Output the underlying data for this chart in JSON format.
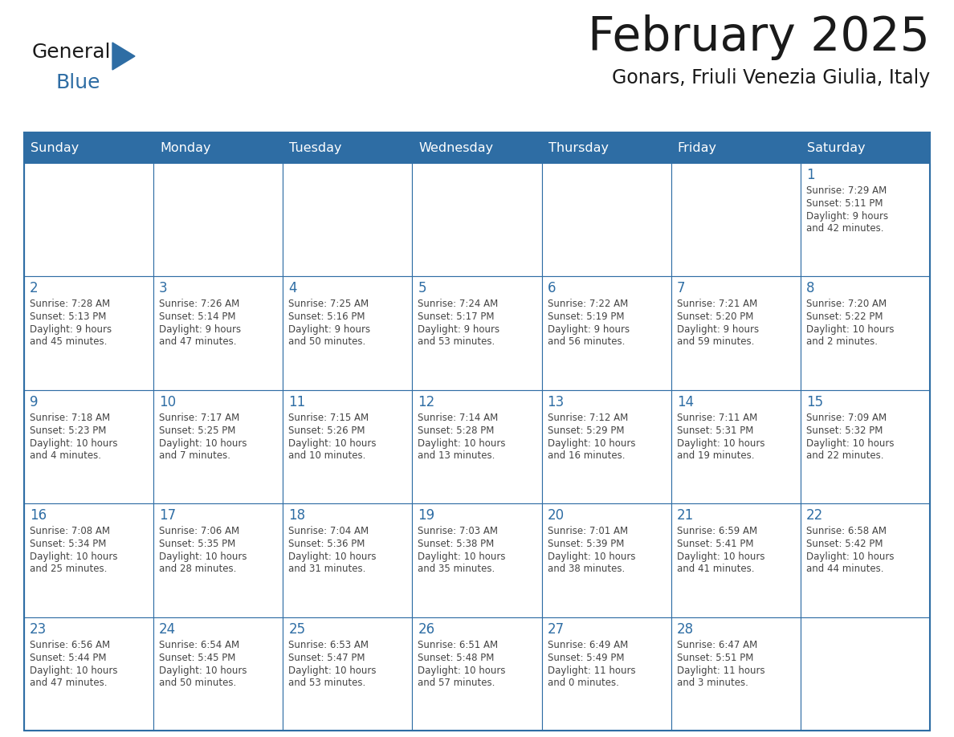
{
  "title": "February 2025",
  "subtitle": "Gonars, Friuli Venezia Giulia, Italy",
  "days_of_week": [
    "Sunday",
    "Monday",
    "Tuesday",
    "Wednesday",
    "Thursday",
    "Friday",
    "Saturday"
  ],
  "header_bg": "#2E6DA4",
  "header_fg": "#FFFFFF",
  "cell_bg": "#FFFFFF",
  "border_color": "#2E6DA4",
  "day_number_color": "#2E6DA4",
  "text_color": "#444444",
  "calendar_data": [
    [
      null,
      null,
      null,
      null,
      null,
      null,
      {
        "day": 1,
        "sunrise": "7:29 AM",
        "sunset": "5:11 PM",
        "daylight": "9 hours and 42 minutes."
      }
    ],
    [
      {
        "day": 2,
        "sunrise": "7:28 AM",
        "sunset": "5:13 PM",
        "daylight": "9 hours and 45 minutes."
      },
      {
        "day": 3,
        "sunrise": "7:26 AM",
        "sunset": "5:14 PM",
        "daylight": "9 hours and 47 minutes."
      },
      {
        "day": 4,
        "sunrise": "7:25 AM",
        "sunset": "5:16 PM",
        "daylight": "9 hours and 50 minutes."
      },
      {
        "day": 5,
        "sunrise": "7:24 AM",
        "sunset": "5:17 PM",
        "daylight": "9 hours and 53 minutes."
      },
      {
        "day": 6,
        "sunrise": "7:22 AM",
        "sunset": "5:19 PM",
        "daylight": "9 hours and 56 minutes."
      },
      {
        "day": 7,
        "sunrise": "7:21 AM",
        "sunset": "5:20 PM",
        "daylight": "9 hours and 59 minutes."
      },
      {
        "day": 8,
        "sunrise": "7:20 AM",
        "sunset": "5:22 PM",
        "daylight": "10 hours and 2 minutes."
      }
    ],
    [
      {
        "day": 9,
        "sunrise": "7:18 AM",
        "sunset": "5:23 PM",
        "daylight": "10 hours and 4 minutes."
      },
      {
        "day": 10,
        "sunrise": "7:17 AM",
        "sunset": "5:25 PM",
        "daylight": "10 hours and 7 minutes."
      },
      {
        "day": 11,
        "sunrise": "7:15 AM",
        "sunset": "5:26 PM",
        "daylight": "10 hours and 10 minutes."
      },
      {
        "day": 12,
        "sunrise": "7:14 AM",
        "sunset": "5:28 PM",
        "daylight": "10 hours and 13 minutes."
      },
      {
        "day": 13,
        "sunrise": "7:12 AM",
        "sunset": "5:29 PM",
        "daylight": "10 hours and 16 minutes."
      },
      {
        "day": 14,
        "sunrise": "7:11 AM",
        "sunset": "5:31 PM",
        "daylight": "10 hours and 19 minutes."
      },
      {
        "day": 15,
        "sunrise": "7:09 AM",
        "sunset": "5:32 PM",
        "daylight": "10 hours and 22 minutes."
      }
    ],
    [
      {
        "day": 16,
        "sunrise": "7:08 AM",
        "sunset": "5:34 PM",
        "daylight": "10 hours and 25 minutes."
      },
      {
        "day": 17,
        "sunrise": "7:06 AM",
        "sunset": "5:35 PM",
        "daylight": "10 hours and 28 minutes."
      },
      {
        "day": 18,
        "sunrise": "7:04 AM",
        "sunset": "5:36 PM",
        "daylight": "10 hours and 31 minutes."
      },
      {
        "day": 19,
        "sunrise": "7:03 AM",
        "sunset": "5:38 PM",
        "daylight": "10 hours and 35 minutes."
      },
      {
        "day": 20,
        "sunrise": "7:01 AM",
        "sunset": "5:39 PM",
        "daylight": "10 hours and 38 minutes."
      },
      {
        "day": 21,
        "sunrise": "6:59 AM",
        "sunset": "5:41 PM",
        "daylight": "10 hours and 41 minutes."
      },
      {
        "day": 22,
        "sunrise": "6:58 AM",
        "sunset": "5:42 PM",
        "daylight": "10 hours and 44 minutes."
      }
    ],
    [
      {
        "day": 23,
        "sunrise": "6:56 AM",
        "sunset": "5:44 PM",
        "daylight": "10 hours and 47 minutes."
      },
      {
        "day": 24,
        "sunrise": "6:54 AM",
        "sunset": "5:45 PM",
        "daylight": "10 hours and 50 minutes."
      },
      {
        "day": 25,
        "sunrise": "6:53 AM",
        "sunset": "5:47 PM",
        "daylight": "10 hours and 53 minutes."
      },
      {
        "day": 26,
        "sunrise": "6:51 AM",
        "sunset": "5:48 PM",
        "daylight": "10 hours and 57 minutes."
      },
      {
        "day": 27,
        "sunrise": "6:49 AM",
        "sunset": "5:49 PM",
        "daylight": "11 hours and 0 minutes."
      },
      {
        "day": 28,
        "sunrise": "6:47 AM",
        "sunset": "5:51 PM",
        "daylight": "11 hours and 3 minutes."
      },
      null
    ]
  ]
}
